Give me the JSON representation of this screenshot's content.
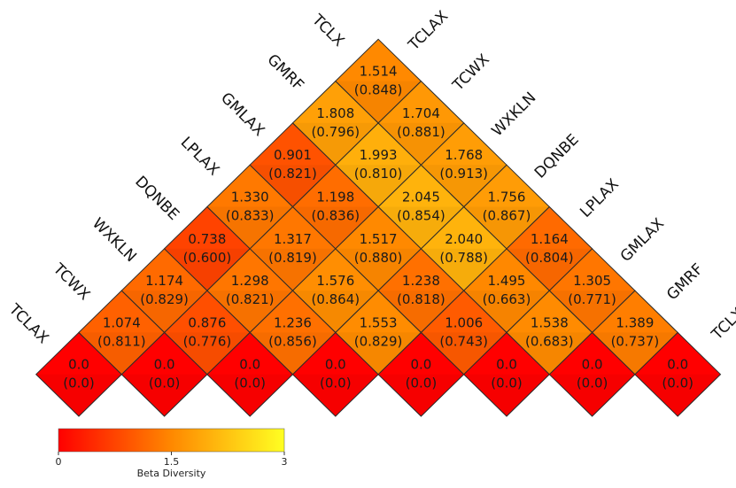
{
  "chart_data": {
    "type": "heatmap",
    "layout": "triangular-diamond",
    "colorbar_label": "Beta Diversity",
    "color_range": [
      0,
      3
    ],
    "color_ticks": [
      "0",
      "1.5",
      "3"
    ],
    "left_labels": [
      "TCLAX",
      "TCWX",
      "WXKLN",
      "DQNBE",
      "LPLAX",
      "GMLAX",
      "GMRF",
      "TCLX"
    ],
    "right_labels": [
      "TCLAX",
      "TCWX",
      "WXKLN",
      "DQNBE",
      "LPLAX",
      "GMLAX",
      "GMRF",
      "TCLX"
    ],
    "rows": [
      [
        {
          "v": "0.0",
          "p": "(0.0)"
        },
        {
          "v": "0.0",
          "p": "(0.0)"
        },
        {
          "v": "0.0",
          "p": "(0.0)"
        },
        {
          "v": "0.0",
          "p": "(0.0)"
        },
        {
          "v": "0.0",
          "p": "(0.0)"
        },
        {
          "v": "0.0",
          "p": "(0.0)"
        },
        {
          "v": "0.0",
          "p": "(0.0)"
        },
        {
          "v": "0.0",
          "p": "(0.0)"
        }
      ],
      [
        {
          "v": "1.074",
          "p": "(0.811)"
        },
        {
          "v": "0.876",
          "p": "(0.776)"
        },
        {
          "v": "1.236",
          "p": "(0.856)"
        },
        {
          "v": "1.553",
          "p": "(0.829)"
        },
        {
          "v": "1.006",
          "p": "(0.743)"
        },
        {
          "v": "1.538",
          "p": "(0.683)"
        },
        {
          "v": "1.389",
          "p": "(0.737)"
        }
      ],
      [
        {
          "v": "1.174",
          "p": "(0.829)"
        },
        {
          "v": "1.298",
          "p": "(0.821)"
        },
        {
          "v": "1.576",
          "p": "(0.864)"
        },
        {
          "v": "1.238",
          "p": "(0.818)"
        },
        {
          "v": "1.495",
          "p": "(0.663)"
        },
        {
          "v": "1.305",
          "p": "(0.771)"
        }
      ],
      [
        {
          "v": "0.738",
          "p": "(0.600)"
        },
        {
          "v": "1.317",
          "p": "(0.819)"
        },
        {
          "v": "1.517",
          "p": "(0.880)"
        },
        {
          "v": "2.040",
          "p": "(0.788)"
        },
        {
          "v": "1.164",
          "p": "(0.804)"
        }
      ],
      [
        {
          "v": "1.330",
          "p": "(0.833)"
        },
        {
          "v": "1.198",
          "p": "(0.836)"
        },
        {
          "v": "2.045",
          "p": "(0.854)"
        },
        {
          "v": "1.756",
          "p": "(0.867)"
        }
      ],
      [
        {
          "v": "0.901",
          "p": "(0.821)"
        },
        {
          "v": "1.993",
          "p": "(0.810)"
        },
        {
          "v": "1.768",
          "p": "(0.913)"
        }
      ],
      [
        {
          "v": "1.808",
          "p": "(0.796)"
        },
        {
          "v": "1.704",
          "p": "(0.881)"
        }
      ],
      [
        {
          "v": "1.514",
          "p": "(0.848)"
        }
      ]
    ]
  }
}
